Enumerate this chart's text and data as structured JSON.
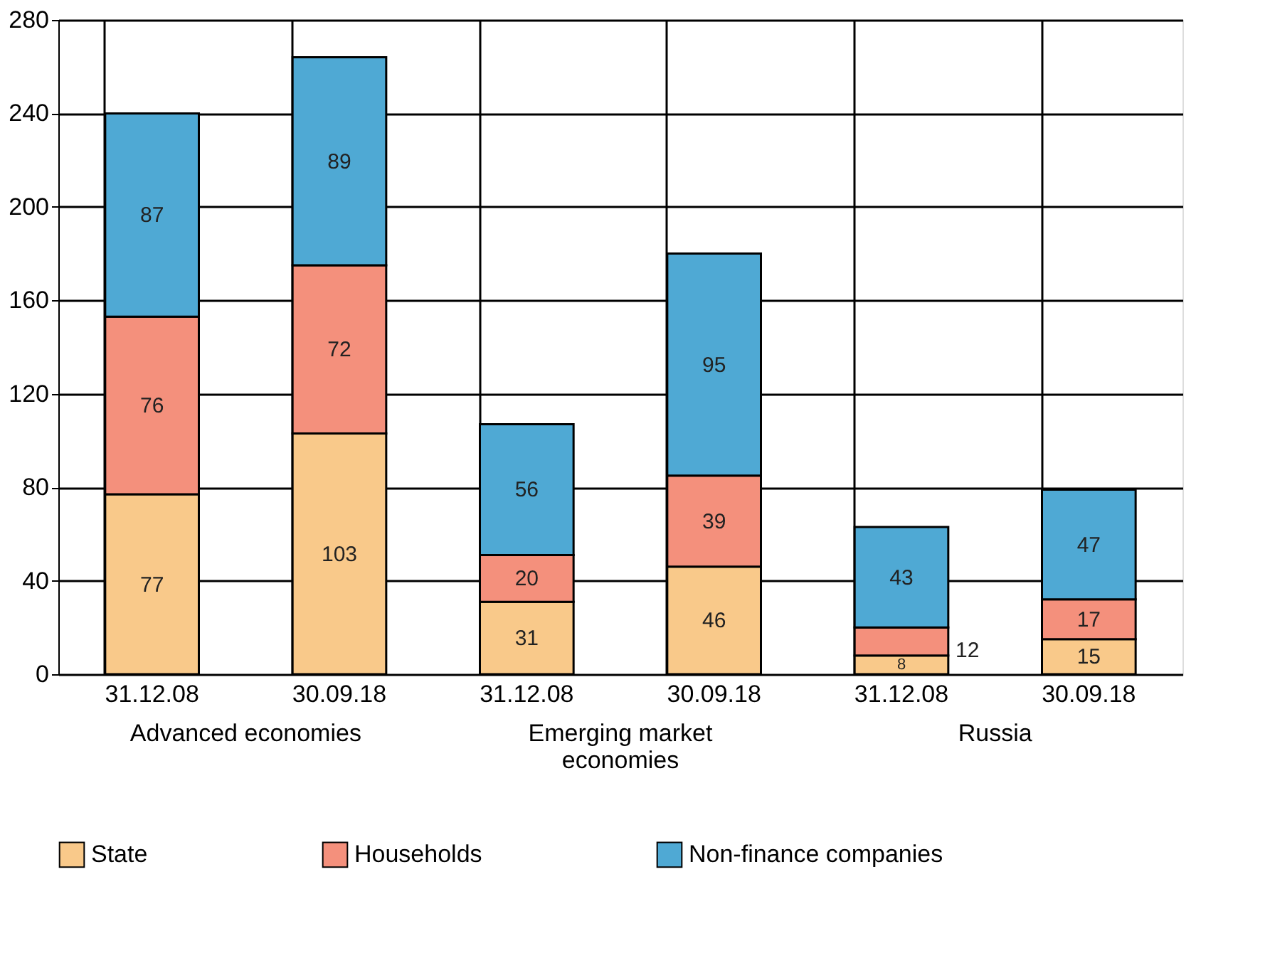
{
  "chart_data": {
    "type": "bar",
    "stacked": true,
    "categories": [
      "31.12.08",
      "30.09.18",
      "31.12.08",
      "30.09.18",
      "31.12.08",
      "30.09.18"
    ],
    "series": [
      {
        "name": "State",
        "color": "#f9c98a",
        "values": [
          77,
          103,
          31,
          46,
          8,
          15
        ]
      },
      {
        "name": "Households",
        "color": "#f4907c",
        "values": [
          76,
          72,
          20,
          39,
          12,
          17
        ]
      },
      {
        "name": "Non-finance companies",
        "color": "#4fa9d4",
        "values": [
          87,
          89,
          56,
          95,
          43,
          47
        ]
      }
    ],
    "ylim": [
      0,
      280
    ],
    "yticks": [
      0,
      40,
      80,
      120,
      160,
      200,
      240,
      280
    ],
    "annotations": [
      "Advanced economies",
      "Emerging market\neconomies",
      "Russia"
    ],
    "grid": true,
    "legend": "bottom",
    "data_labels": true
  }
}
